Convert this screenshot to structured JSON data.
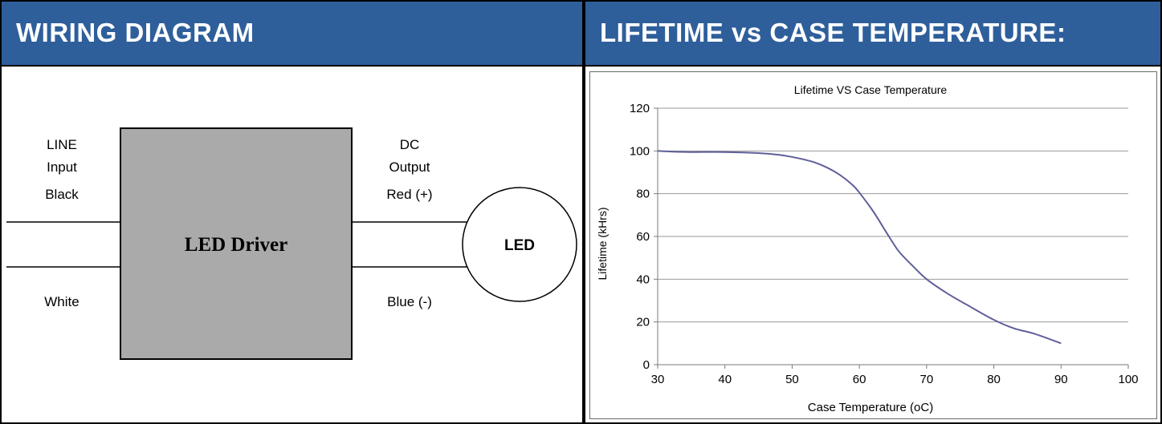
{
  "wiring": {
    "title": "WIRING DIAGRAM",
    "line_input": [
      "LINE",
      "Input",
      "Black"
    ],
    "white_label": "White",
    "dc_output": [
      "DC",
      "Output",
      "Red (+)"
    ],
    "blue_label": "Blue (-)",
    "driver_label": "LED Driver",
    "led_label": "LED"
  },
  "lifetime": {
    "title": "LIFETIME vs CASE TEMPERATURE:"
  },
  "colors": {
    "header_bg": "#2e5f9b",
    "driver_fill": "#aaaaaa",
    "curve": "#5f5f9a"
  },
  "chart_data": {
    "type": "line",
    "title": "Lifetime VS Case Temperature",
    "xlabel": "Case Temperature (oC)",
    "ylabel": "Lifetime (kHrs)",
    "xlim": [
      30,
      100
    ],
    "ylim": [
      0,
      120
    ],
    "xticks": [
      30,
      40,
      50,
      60,
      70,
      80,
      90,
      100
    ],
    "yticks": [
      0,
      20,
      40,
      60,
      80,
      100,
      120
    ],
    "grid": "horizontal",
    "series": [
      {
        "x": [
          30,
          32,
          35,
          40,
          45,
          48,
          50,
          53,
          55,
          57,
          59,
          60,
          62,
          64,
          65,
          66,
          68,
          70,
          73,
          76,
          80,
          83,
          86,
          90
        ],
        "y": [
          100,
          99.7,
          99.5,
          99.5,
          99,
          98.2,
          97.2,
          95,
          92.5,
          89,
          84,
          80.5,
          72,
          62,
          57,
          52.5,
          46,
          40,
          33.5,
          28,
          21,
          17,
          14.5,
          10
        ]
      }
    ]
  }
}
